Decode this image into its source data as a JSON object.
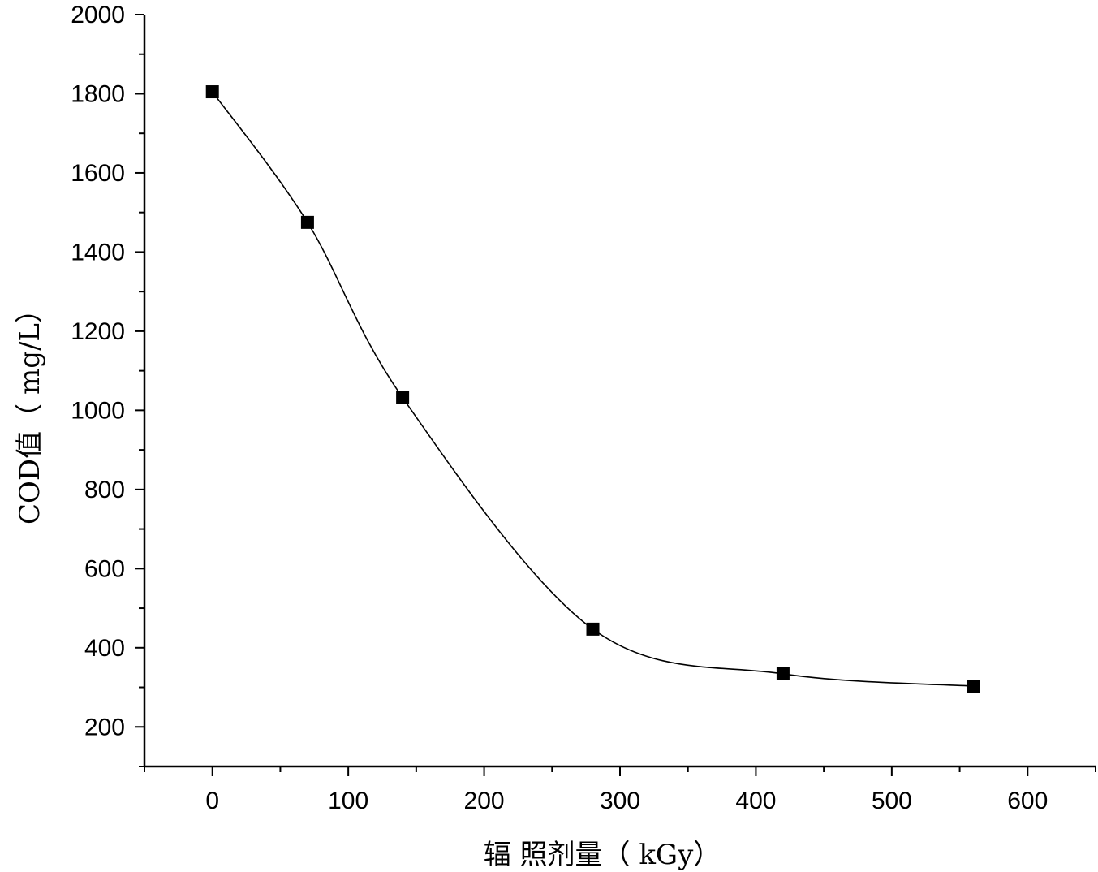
{
  "chart_data": {
    "type": "scatter",
    "title": "",
    "xlabel": "辐 照剂量（ kGy）",
    "ylabel": "COD值（ mg/L）",
    "xlim": [
      -50,
      650
    ],
    "ylim": [
      100,
      2000
    ],
    "x_ticks": [
      0,
      100,
      200,
      300,
      400,
      500,
      600
    ],
    "x_tick_labels": [
      "0",
      "100",
      "200",
      "300",
      "400",
      "500",
      "600"
    ],
    "y_ticks": [
      200,
      400,
      600,
      800,
      1000,
      1200,
      1400,
      1600,
      1800,
      2000
    ],
    "y_tick_labels": [
      "200",
      "400",
      "600",
      "800",
      "1000",
      "1200",
      "1400",
      "1600",
      "1800",
      "2000"
    ],
    "grid": false,
    "legend": "none",
    "series": [
      {
        "marker": "square",
        "color": "#000000",
        "smooth_line": true,
        "x": [
          0,
          70,
          140,
          280,
          420,
          560
        ],
        "y": [
          1805,
          1475,
          1032,
          447,
          334,
          303
        ]
      }
    ]
  }
}
